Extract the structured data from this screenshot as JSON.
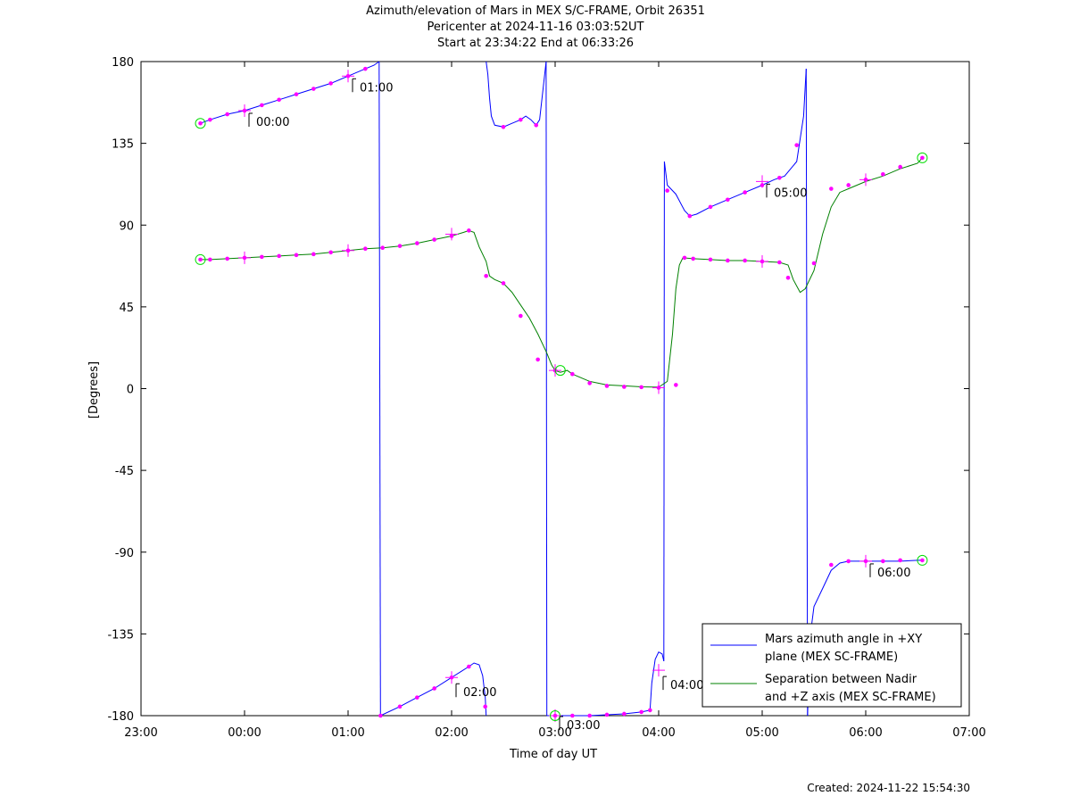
{
  "title_lines": [
    "Azimuth/elevation of Mars in MEX S/C-FRAME,  Orbit 26351",
    "Pericenter at 2024-11-16 03:03:52UT",
    "Start at 23:34:22 End at 06:33:26"
  ],
  "created": "Created: 2024-11-22 15:54:30",
  "colors": {
    "azimuth": "#0000ff",
    "separation": "#008000",
    "marker": "#ff00ff",
    "circle": "#00dd00"
  },
  "chart_data": {
    "type": "line",
    "title": "Azimuth/elevation of Mars in MEX S/C-FRAME,  Orbit 26351",
    "xlabel": "Time of day UT",
    "ylabel": "[Degrees]",
    "xlim": [
      -60,
      420
    ],
    "ylim": [
      -180,
      180
    ],
    "x_ticks": [
      -60,
      0,
      60,
      120,
      180,
      240,
      300,
      360,
      420
    ],
    "x_tick_labels": [
      "23:00",
      "00:00",
      "01:00",
      "02:00",
      "03:00",
      "04:00",
      "05:00",
      "06:00",
      "07:00"
    ],
    "y_ticks": [
      180,
      135,
      90,
      45,
      0,
      -45,
      -90,
      -135,
      -180
    ],
    "y_tick_labels": [
      "180",
      "135",
      "90",
      "45",
      "0",
      "-45",
      "-90",
      "-135",
      "-180"
    ],
    "legend_position": "bottom-right",
    "series": [
      {
        "name": "Mars azimuth angle in +XY\nplane (MEX SC-FRAME)",
        "segments": [
          [
            [
              -25.6,
              146
            ],
            [
              -20,
              148
            ],
            [
              -10,
              151
            ],
            [
              0,
              153
            ],
            [
              10,
              156
            ],
            [
              20,
              159
            ],
            [
              30,
              162
            ],
            [
              40,
              165
            ],
            [
              50,
              168
            ],
            [
              60,
              172
            ],
            [
              70,
              176
            ],
            [
              75,
              178
            ],
            [
              78,
              180
            ]
          ],
          [
            [
              78,
              180
            ],
            [
              78.8,
              -180
            ]
          ],
          [
            [
              78.8,
              -180
            ],
            [
              90,
              -175
            ],
            [
              100,
              -170
            ],
            [
              110,
              -165
            ],
            [
              120,
              -159
            ],
            [
              125,
              -156
            ],
            [
              130,
              -153
            ],
            [
              133,
              -151
            ],
            [
              136,
              -152
            ],
            [
              138,
              -158
            ],
            [
              139.5,
              -170
            ],
            [
              140,
              -180
            ]
          ],
          [
            [
              140,
              180
            ],
            [
              141,
              173
            ],
            [
              142,
              160
            ],
            [
              143,
              150
            ],
            [
              145,
              145
            ],
            [
              150,
              144
            ],
            [
              155,
              146
            ],
            [
              160,
              148
            ],
            [
              163,
              150
            ],
            [
              166,
              148
            ],
            [
              169,
              145
            ],
            [
              171,
              148
            ],
            [
              173,
              165
            ],
            [
              174.8,
              180
            ]
          ],
          [
            [
              174.8,
              180
            ],
            [
              175.2,
              -180
            ]
          ],
          [
            [
              175.2,
              -180
            ],
            [
              180,
              -180
            ],
            [
              190,
              -180
            ],
            [
              200,
              -180
            ],
            [
              210,
              -179.5
            ],
            [
              220,
              -179
            ],
            [
              230,
              -178
            ],
            [
              235,
              -177
            ],
            [
              236,
              -162
            ],
            [
              238,
              -149
            ],
            [
              240,
              -145
            ],
            [
              242,
              -146
            ],
            [
              243,
              -150
            ]
          ],
          [
            [
              243,
              -150
            ],
            [
              243.3,
              125
            ]
          ],
          [
            [
              243.3,
              125
            ],
            [
              245,
              112
            ],
            [
              250,
              107
            ],
            [
              255,
              98
            ],
            [
              258,
              95
            ],
            [
              262,
              96
            ],
            [
              270,
              100
            ],
            [
              280,
              104
            ],
            [
              290,
              108
            ],
            [
              300,
              112
            ],
            [
              307,
              115
            ],
            [
              313,
              117
            ],
            [
              320,
              125
            ],
            [
              324,
              150
            ],
            [
              325.5,
              176
            ]
          ],
          [
            [
              325.5,
              176
            ],
            [
              326.3,
              -180
            ]
          ],
          [
            [
              326.3,
              -180
            ],
            [
              328,
              -135
            ],
            [
              330,
              -120
            ],
            [
              335,
              -110
            ],
            [
              340,
              -100
            ],
            [
              345,
              -96
            ],
            [
              350,
              -95
            ],
            [
              360,
              -95
            ],
            [
              370,
              -95
            ],
            [
              380,
              -95
            ],
            [
              390,
              -94.5
            ],
            [
              392.8,
              -94.5
            ]
          ]
        ],
        "markers": [
          [
            -25.6,
            146
          ],
          [
            -20,
            148
          ],
          [
            -10,
            151
          ],
          [
            0,
            153
          ],
          [
            10,
            156
          ],
          [
            20,
            159
          ],
          [
            30,
            162
          ],
          [
            40,
            165
          ],
          [
            50,
            168
          ],
          [
            60,
            172
          ],
          [
            70,
            176
          ],
          [
            78.8,
            -180
          ],
          [
            90,
            -175
          ],
          [
            100,
            -170
          ],
          [
            110,
            -165
          ],
          [
            120,
            -159
          ],
          [
            130,
            -153
          ],
          [
            139.5,
            -175
          ],
          [
            150,
            144
          ],
          [
            160,
            148
          ],
          [
            169,
            145
          ],
          [
            180,
            -180
          ],
          [
            190,
            -180
          ],
          [
            200,
            -180
          ],
          [
            210,
            -179.5
          ],
          [
            220,
            -179
          ],
          [
            230,
            -178
          ],
          [
            235,
            -177
          ],
          [
            245,
            109
          ],
          [
            258,
            95
          ],
          [
            270,
            100
          ],
          [
            280,
            104
          ],
          [
            290,
            108
          ],
          [
            300,
            112
          ],
          [
            310,
            116
          ],
          [
            320,
            134
          ],
          [
            340,
            -97
          ],
          [
            350,
            -95
          ],
          [
            360,
            -95
          ],
          [
            370,
            -95
          ],
          [
            380,
            -94.5
          ],
          [
            392.8,
            -94.5
          ]
        ],
        "hour_crosses": [
          [
            0,
            153
          ],
          [
            60,
            172
          ],
          [
            120,
            -159
          ],
          [
            180,
            -180
          ],
          [
            240,
            -155
          ],
          [
            300,
            114
          ],
          [
            360,
            -95
          ]
        ],
        "hour_annotations": [
          {
            "text": "00:00",
            "x": 0,
            "y": 153
          },
          {
            "text": "01:00",
            "x": 60,
            "y": 172
          },
          {
            "text": "02:00",
            "x": 120,
            "y": -159
          },
          {
            "text": "03:00",
            "x": 180,
            "y": -180
          },
          {
            "text": "04:00",
            "x": 240,
            "y": -155
          },
          {
            "text": "05:00",
            "x": 300,
            "y": 114
          },
          {
            "text": "06:00",
            "x": 360,
            "y": -95
          }
        ],
        "circles": [
          [
            -25.6,
            146
          ],
          [
            180,
            -180
          ],
          [
            392.8,
            -94.5
          ]
        ]
      },
      {
        "name": "Separation between Nadir\nand +Z axis (MEX SC-FRAME)",
        "segments": [
          [
            [
              -25.6,
              71
            ],
            [
              -20,
              71
            ],
            [
              -10,
              71.5
            ],
            [
              0,
              72
            ],
            [
              10,
              72.5
            ],
            [
              20,
              73
            ],
            [
              30,
              73.5
            ],
            [
              40,
              74
            ],
            [
              50,
              75
            ],
            [
              60,
              76
            ],
            [
              70,
              77
            ],
            [
              80,
              77.5
            ],
            [
              90,
              78.5
            ],
            [
              100,
              80
            ],
            [
              110,
              82
            ],
            [
              120,
              84
            ],
            [
              127,
              86
            ],
            [
              130,
              87
            ],
            [
              133,
              86
            ],
            [
              136,
              78
            ],
            [
              140,
              70
            ],
            [
              142,
              62
            ],
            [
              145,
              60
            ],
            [
              150,
              58
            ],
            [
              155,
              53
            ],
            [
              160,
              46
            ],
            [
              165,
              39
            ],
            [
              170,
              30
            ],
            [
              175,
              20
            ],
            [
              178,
              13
            ],
            [
              180,
              10
            ],
            [
              183,
              9
            ],
            [
              187,
              10
            ],
            [
              190,
              8
            ],
            [
              195,
              6
            ],
            [
              200,
              4
            ],
            [
              210,
              2
            ],
            [
              220,
              1.5
            ],
            [
              230,
              1
            ],
            [
              240,
              0.8
            ],
            [
              245,
              4
            ],
            [
              248,
              30
            ],
            [
              250,
              55
            ],
            [
              252,
              68
            ],
            [
              254,
              72
            ],
            [
              260,
              71.5
            ],
            [
              270,
              71
            ],
            [
              280,
              70.5
            ],
            [
              290,
              70.5
            ],
            [
              300,
              70
            ],
            [
              310,
              69.5
            ],
            [
              315,
              68
            ],
            [
              318,
              60
            ],
            [
              322,
              53
            ],
            [
              325,
              55
            ],
            [
              330,
              65
            ],
            [
              335,
              85
            ],
            [
              340,
              100
            ],
            [
              345,
              108
            ],
            [
              350,
              110
            ],
            [
              360,
              114
            ],
            [
              370,
              117
            ],
            [
              380,
              121
            ],
            [
              390,
              124
            ],
            [
              392.8,
              127
            ]
          ]
        ],
        "markers": [
          [
            -25.6,
            71
          ],
          [
            -20,
            71
          ],
          [
            -10,
            71.5
          ],
          [
            0,
            72
          ],
          [
            10,
            72.5
          ],
          [
            20,
            73
          ],
          [
            30,
            73.5
          ],
          [
            40,
            74
          ],
          [
            50,
            75
          ],
          [
            60,
            76
          ],
          [
            70,
            77
          ],
          [
            80,
            77.5
          ],
          [
            90,
            78.5
          ],
          [
            100,
            80
          ],
          [
            110,
            82
          ],
          [
            120,
            84
          ],
          [
            130,
            87
          ],
          [
            140,
            62
          ],
          [
            150,
            58
          ],
          [
            160,
            40
          ],
          [
            170,
            16
          ],
          [
            180,
            10
          ],
          [
            190,
            8
          ],
          [
            200,
            3
          ],
          [
            210,
            1.5
          ],
          [
            220,
            1
          ],
          [
            230,
            0.8
          ],
          [
            240,
            0.5
          ],
          [
            250,
            2
          ],
          [
            255,
            72
          ],
          [
            260,
            71.5
          ],
          [
            270,
            71
          ],
          [
            280,
            70.5
          ],
          [
            290,
            70.5
          ],
          [
            300,
            70
          ],
          [
            310,
            69.5
          ],
          [
            315,
            61
          ],
          [
            330,
            69
          ],
          [
            340,
            110
          ],
          [
            350,
            112
          ],
          [
            360,
            115
          ],
          [
            370,
            118
          ],
          [
            380,
            122
          ],
          [
            392.8,
            127
          ]
        ],
        "hour_crosses": [
          [
            0,
            72
          ],
          [
            60,
            76
          ],
          [
            120,
            85
          ],
          [
            180,
            10
          ],
          [
            240,
            0.5
          ],
          [
            300,
            70
          ],
          [
            360,
            115
          ]
        ],
        "circles": [
          [
            -25.6,
            71
          ],
          [
            183,
            10
          ],
          [
            392.8,
            127
          ]
        ]
      }
    ]
  }
}
